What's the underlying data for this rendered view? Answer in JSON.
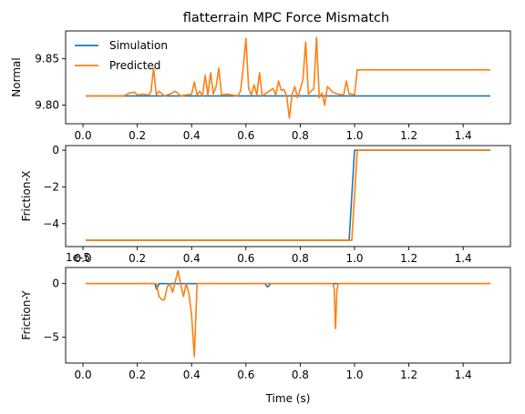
{
  "title": "flatterrain MPC Force Mismatch",
  "colors": {
    "simulation": "#1f77b4",
    "predicted": "#ff7f0e"
  },
  "chart_data": [
    {
      "type": "line",
      "ylabel": "Normal",
      "xlim": [
        -0.064,
        1.574
      ],
      "ylim": [
        9.78,
        9.88
      ],
      "xticks": [
        0.0,
        0.2,
        0.4,
        0.6,
        0.8,
        1.0,
        1.2,
        1.4
      ],
      "yticks": [
        9.8,
        9.85
      ],
      "ytick_labels": [
        "9.80",
        "9.85"
      ],
      "legend": {
        "position": "top-left",
        "entries": [
          "Simulation",
          "Predicted"
        ]
      },
      "series": [
        {
          "name": "Simulation",
          "color": "#1f77b4",
          "x": [
            0.01,
            1.5
          ],
          "y": [
            9.81,
            9.81
          ]
        },
        {
          "name": "Predicted",
          "color": "#ff7f0e",
          "x": [
            0.01,
            0.15,
            0.17,
            0.19,
            0.2,
            0.22,
            0.24,
            0.25,
            0.26,
            0.27,
            0.28,
            0.3,
            0.32,
            0.34,
            0.36,
            0.38,
            0.4,
            0.41,
            0.42,
            0.43,
            0.44,
            0.45,
            0.46,
            0.47,
            0.48,
            0.49,
            0.5,
            0.51,
            0.53,
            0.55,
            0.57,
            0.58,
            0.59,
            0.6,
            0.61,
            0.62,
            0.63,
            0.64,
            0.65,
            0.66,
            0.68,
            0.7,
            0.71,
            0.72,
            0.73,
            0.74,
            0.75,
            0.76,
            0.77,
            0.78,
            0.79,
            0.8,
            0.81,
            0.82,
            0.83,
            0.84,
            0.85,
            0.86,
            0.87,
            0.88,
            0.89,
            0.9,
            0.92,
            0.94,
            0.96,
            0.97,
            0.98,
            0.99,
            1.0,
            1.01,
            1.5
          ],
          "y": [
            9.81,
            9.81,
            9.813,
            9.814,
            9.811,
            9.812,
            9.811,
            9.814,
            9.84,
            9.811,
            9.815,
            9.81,
            9.812,
            9.815,
            9.81,
            9.811,
            9.812,
            9.825,
            9.811,
            9.815,
            9.81,
            9.832,
            9.811,
            9.835,
            9.812,
            9.82,
            9.84,
            9.811,
            9.812,
            9.811,
            9.81,
            9.815,
            9.84,
            9.872,
            9.818,
            9.811,
            9.822,
            9.811,
            9.835,
            9.81,
            9.814,
            9.818,
            9.811,
            9.826,
            9.816,
            9.817,
            9.81,
            9.786,
            9.812,
            9.82,
            9.808,
            9.817,
            9.828,
            9.868,
            9.812,
            9.815,
            9.818,
            9.873,
            9.808,
            9.813,
            9.8,
            9.82,
            9.814,
            9.812,
            9.811,
            9.826,
            9.812,
            9.812,
            9.811,
            9.838,
            9.838
          ]
        }
      ]
    },
    {
      "type": "line",
      "ylabel": "Friction-X",
      "xlim": [
        -0.064,
        1.574
      ],
      "ylim": [
        -5.25,
        0.25
      ],
      "xticks": [
        0.0,
        0.2,
        0.4,
        0.6,
        0.8,
        1.0,
        1.2,
        1.4
      ],
      "yticks": [
        -4,
        -2,
        0
      ],
      "ytick_labels": [
        "−4",
        "−2",
        "0"
      ],
      "series": [
        {
          "name": "Simulation",
          "color": "#1f77b4",
          "x": [
            0.01,
            0.98,
            1.0,
            1.5
          ],
          "y": [
            -4.905,
            -4.905,
            0,
            0
          ]
        },
        {
          "name": "Predicted",
          "color": "#ff7f0e",
          "x": [
            0.01,
            0.99,
            1.01,
            1.5
          ],
          "y": [
            -4.905,
            -4.905,
            0,
            0
          ]
        }
      ]
    },
    {
      "type": "line",
      "ylabel": "Friction-Y",
      "offset_text": "1e-5",
      "xlabel": "Time (s)",
      "xlim": [
        -0.064,
        1.574
      ],
      "ylim": [
        -7.4,
        1.5
      ],
      "xticks": [
        0.0,
        0.2,
        0.4,
        0.6,
        0.8,
        1.0,
        1.2,
        1.4
      ],
      "yticks": [
        -5,
        0
      ],
      "ytick_labels": [
        "−5",
        "0"
      ],
      "series": [
        {
          "name": "Simulation",
          "color": "#1f77b4",
          "x": [
            0.01,
            0.265,
            0.27,
            0.275,
            0.28,
            0.67,
            0.675,
            0.68,
            0.685,
            0.69,
            1.5
          ],
          "y": [
            0,
            0,
            -0.5,
            -0.3,
            0,
            0,
            -0.2,
            -0.3,
            -0.2,
            0,
            0
          ]
        },
        {
          "name": "Predicted",
          "color": "#ff7f0e",
          "x": [
            0.01,
            0.27,
            0.28,
            0.29,
            0.3,
            0.31,
            0.32,
            0.33,
            0.34,
            0.35,
            0.36,
            0.37,
            0.38,
            0.39,
            0.4,
            0.41,
            0.42,
            0.43,
            0.92,
            0.925,
            0.93,
            0.935,
            0.94,
            1.5
          ],
          "y": [
            0,
            0,
            -1.2,
            -1.5,
            -1.5,
            -0.3,
            0,
            -0.8,
            0.2,
            1.2,
            -0.1,
            -1.2,
            0,
            -0.9,
            -3.0,
            -6.8,
            0,
            0,
            0,
            -0.5,
            -4.2,
            -0.6,
            0,
            0
          ]
        }
      ]
    }
  ]
}
